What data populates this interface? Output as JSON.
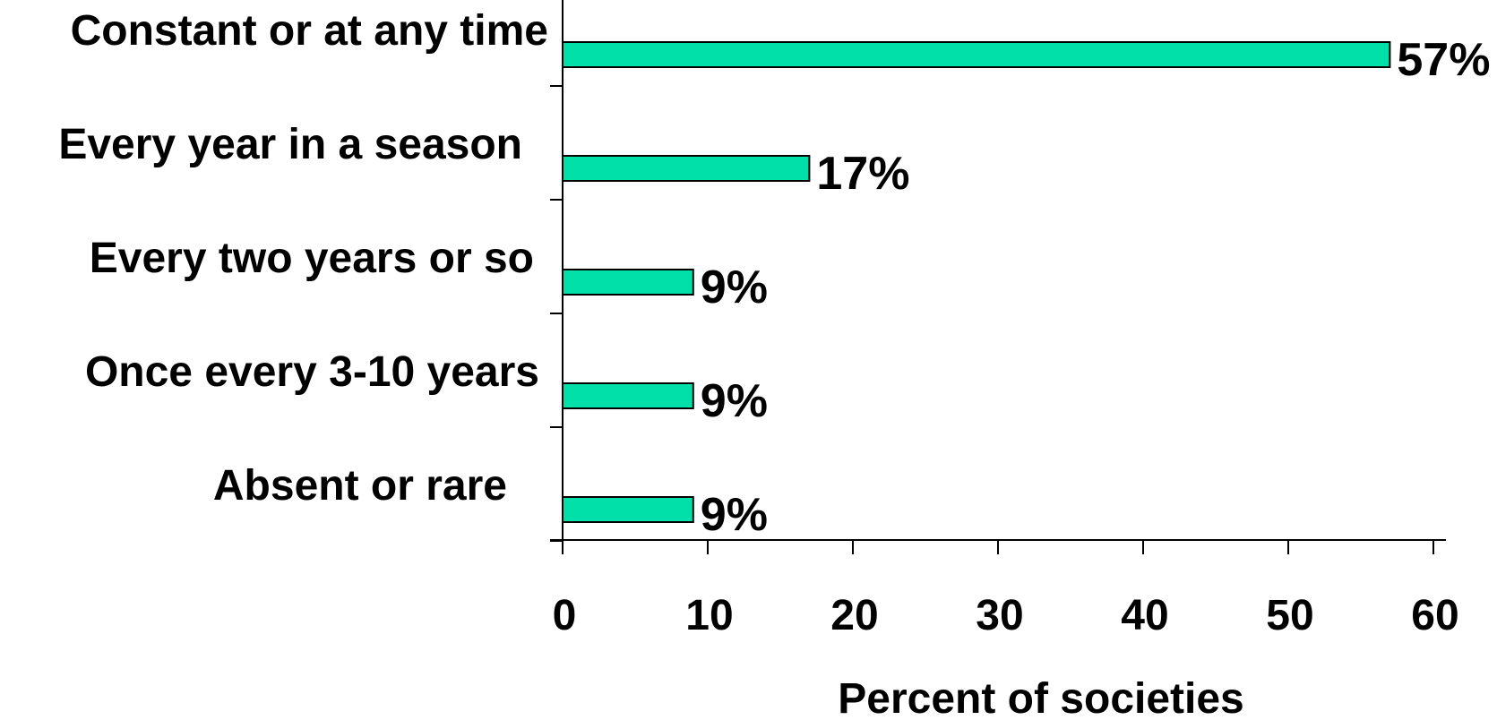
{
  "chart_data": {
    "type": "bar",
    "orientation": "horizontal",
    "categories": [
      "Constant or at any time",
      "Every year in a season",
      "Every two years or so",
      "Once every 3-10 years",
      "Absent or rare"
    ],
    "values": [
      57,
      17,
      9,
      9,
      9
    ],
    "data_labels": [
      "57%",
      "17%",
      "9%",
      "9%",
      "9%"
    ],
    "xlabel": "Percent of societies",
    "ylabel": "",
    "xlim": [
      0,
      60
    ],
    "xticks": [
      "0",
      "10",
      "20",
      "30",
      "40",
      "50",
      "60"
    ],
    "grid": false,
    "legend": "none",
    "colors": {
      "bar": "#00E0A8",
      "bar_outline": "#000000",
      "axis": "#000000"
    }
  }
}
